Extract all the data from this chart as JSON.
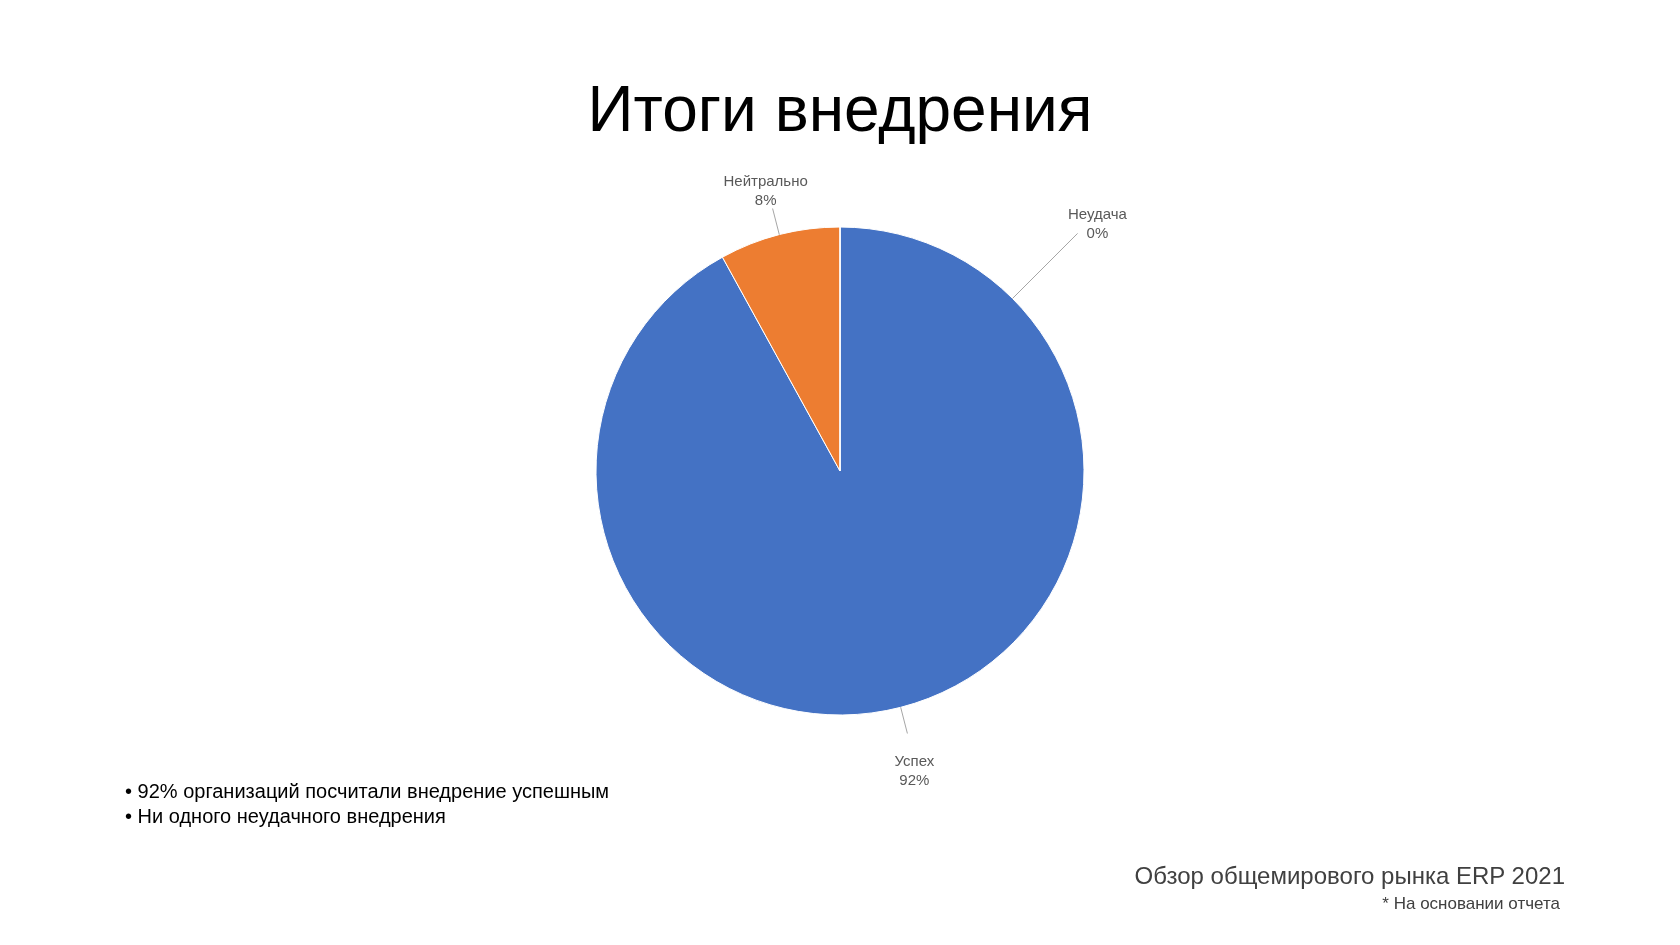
{
  "chart_data": {
    "type": "pie",
    "title": "Итоги внедрения",
    "categories": [
      "Успех",
      "Нейтрально",
      "Неудача"
    ],
    "values": [
      92,
      8,
      0
    ],
    "colors": [
      "#4472c4",
      "#ed7d31",
      "#a5a5a5"
    ],
    "value_labels": [
      "92%",
      "8%",
      "0%"
    ],
    "annotations": [
      "•  92% организаций посчитали внедрение успешным",
      "•  Ни одного неудачного внедрения",
      "Обзор общемирового рынка ERP 2021",
      "* На основании отчета"
    ]
  }
}
